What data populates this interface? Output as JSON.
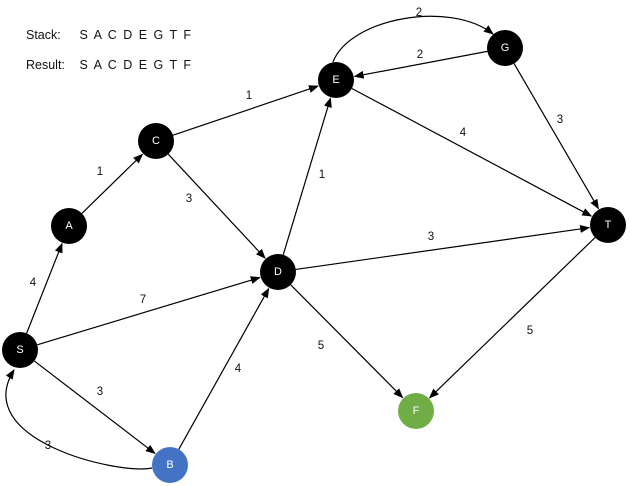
{
  "info": {
    "stack_label": "Stack:",
    "stack_value": "S A C D E G T F",
    "result_label": "Result:",
    "result_value": "S A C D E G T F"
  },
  "colors": {
    "default_node": "#000000",
    "highlight_blue": "#4472C4",
    "highlight_green": "#70AD47",
    "edge": "#000000",
    "node_text": "#FFFFFF"
  },
  "nodes": [
    {
      "id": "S",
      "label": "S",
      "color": "#000000"
    },
    {
      "id": "A",
      "label": "A",
      "color": "#000000"
    },
    {
      "id": "B",
      "label": "B",
      "color": "#4472C4"
    },
    {
      "id": "C",
      "label": "C",
      "color": "#000000"
    },
    {
      "id": "D",
      "label": "D",
      "color": "#000000"
    },
    {
      "id": "E",
      "label": "E",
      "color": "#000000"
    },
    {
      "id": "G",
      "label": "G",
      "color": "#000000"
    },
    {
      "id": "T",
      "label": "T",
      "color": "#000000"
    },
    {
      "id": "F",
      "label": "F",
      "color": "#70AD47"
    }
  ],
  "edges": [
    {
      "from": "S",
      "to": "A",
      "weight": "4"
    },
    {
      "from": "A",
      "to": "C",
      "weight": "1"
    },
    {
      "from": "C",
      "to": "E",
      "weight": "1"
    },
    {
      "from": "C",
      "to": "D",
      "weight": "3"
    },
    {
      "from": "S",
      "to": "D",
      "weight": "7"
    },
    {
      "from": "S",
      "to": "B",
      "weight": "3"
    },
    {
      "from": "B",
      "to": "S",
      "weight": "3"
    },
    {
      "from": "B",
      "to": "D",
      "weight": "4"
    },
    {
      "from": "D",
      "to": "E",
      "weight": "1"
    },
    {
      "from": "D",
      "to": "T",
      "weight": "3"
    },
    {
      "from": "D",
      "to": "F",
      "weight": "5"
    },
    {
      "from": "E",
      "to": "G",
      "weight": "2"
    },
    {
      "from": "G",
      "to": "E",
      "weight": "2"
    },
    {
      "from": "E",
      "to": "T",
      "weight": "4"
    },
    {
      "from": "G",
      "to": "T",
      "weight": "3"
    },
    {
      "from": "T",
      "to": "F",
      "weight": "5"
    }
  ]
}
